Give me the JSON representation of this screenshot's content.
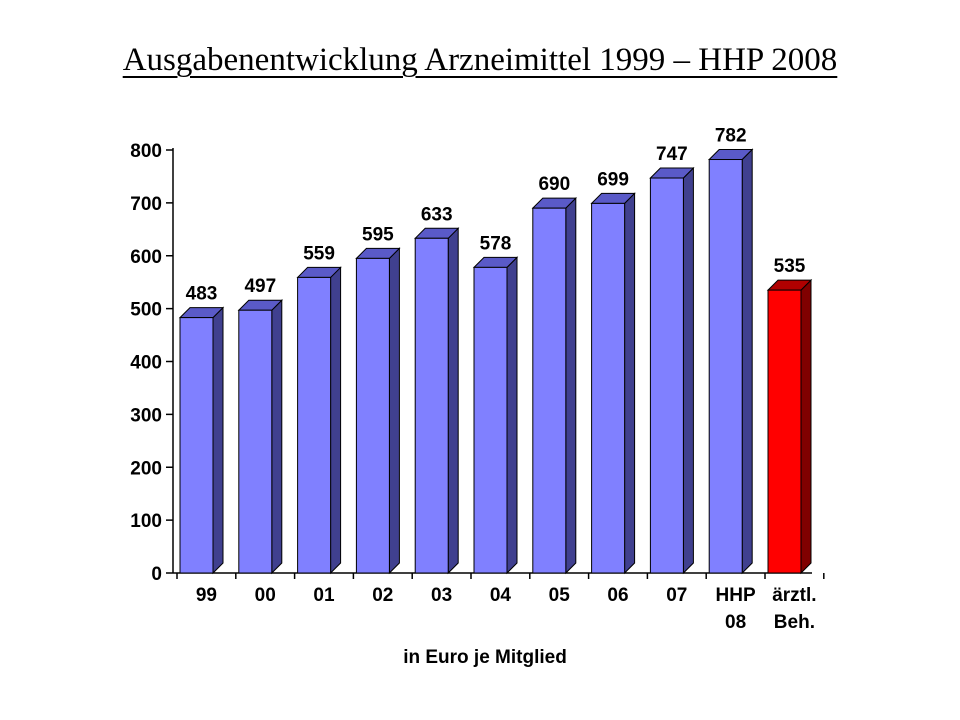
{
  "title": "Ausgabenentwicklung  Arzneimittel 1999 – HHP 2008",
  "chart_data": {
    "type": "bar",
    "style": "3d-columns",
    "categories": [
      [
        "99"
      ],
      [
        "00"
      ],
      [
        "01"
      ],
      [
        "02"
      ],
      [
        "03"
      ],
      [
        "04"
      ],
      [
        "05"
      ],
      [
        "06"
      ],
      [
        "07"
      ],
      [
        "HHP",
        "08"
      ],
      [
        "ärztl.",
        "Beh."
      ]
    ],
    "values": [
      483,
      497,
      559,
      595,
      633,
      578,
      690,
      699,
      747,
      782,
      535
    ],
    "data_labels": [
      "483",
      "497",
      "559",
      "595",
      "633",
      "578",
      "690",
      "699",
      "747",
      "782",
      "535"
    ],
    "highlight_index": 10,
    "colors": {
      "bar_front": "#8080ff",
      "bar_side": "#40408f",
      "bar_top": "#5a5ac8",
      "highlight_front": "#ff0000",
      "highlight_side": "#800000",
      "highlight_top": "#b00000"
    },
    "ylim": [
      0,
      800
    ],
    "yticks": [
      "0",
      "100",
      "200",
      "300",
      "400",
      "500",
      "600",
      "700",
      "800"
    ],
    "xlabel": "in Euro je Mitglied",
    "ylabel": "",
    "grid": false
  }
}
